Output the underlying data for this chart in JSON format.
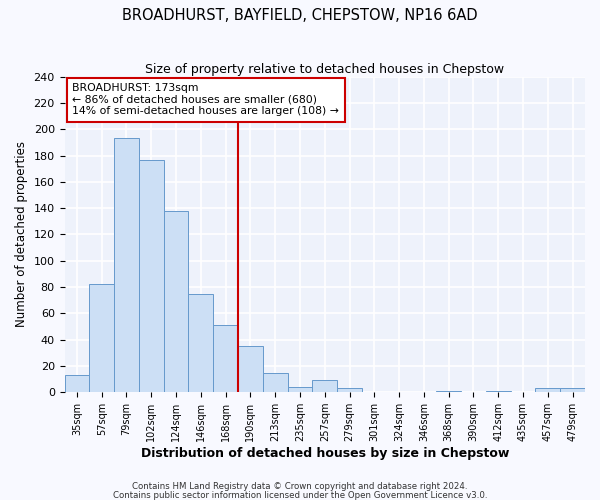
{
  "title": "BROADHURST, BAYFIELD, CHEPSTOW, NP16 6AD",
  "subtitle": "Size of property relative to detached houses in Chepstow",
  "xlabel": "Distribution of detached houses by size in Chepstow",
  "ylabel": "Number of detached properties",
  "bar_color": "#ccdff5",
  "bar_edge_color": "#6699cc",
  "background_color": "#eef2fb",
  "fig_background": "#f8f9ff",
  "grid_color": "#ffffff",
  "categories": [
    "35sqm",
    "57sqm",
    "79sqm",
    "102sqm",
    "124sqm",
    "146sqm",
    "168sqm",
    "190sqm",
    "213sqm",
    "235sqm",
    "257sqm",
    "279sqm",
    "301sqm",
    "324sqm",
    "346sqm",
    "368sqm",
    "390sqm",
    "412sqm",
    "435sqm",
    "457sqm",
    "479sqm"
  ],
  "values": [
    13,
    82,
    193,
    177,
    138,
    75,
    51,
    35,
    15,
    4,
    9,
    3,
    0,
    0,
    0,
    1,
    0,
    1,
    0,
    3,
    3
  ],
  "ylim": [
    0,
    240
  ],
  "yticks": [
    0,
    20,
    40,
    60,
    80,
    100,
    120,
    140,
    160,
    180,
    200,
    220,
    240
  ],
  "vline_x": 6.5,
  "vline_color": "#cc0000",
  "annotation_title": "BROADHURST: 173sqm",
  "annotation_line1": "← 86% of detached houses are smaller (680)",
  "annotation_line2": "14% of semi-detached houses are larger (108) →",
  "annotation_box_edge": "#cc0000",
  "footer1": "Contains HM Land Registry data © Crown copyright and database right 2024.",
  "footer2": "Contains public sector information licensed under the Open Government Licence v3.0."
}
